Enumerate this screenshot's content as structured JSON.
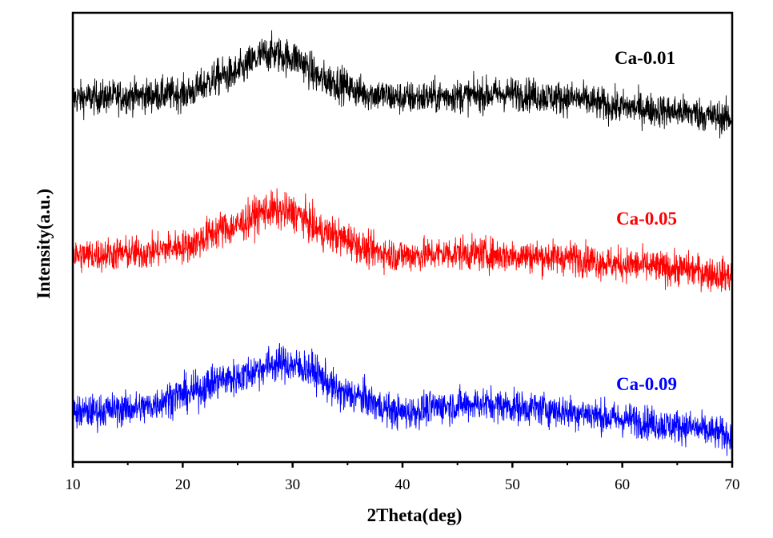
{
  "chart_data": {
    "type": "line",
    "title": "",
    "xlabel": "2Theta(deg)",
    "ylabel": "Intensity(a.u.)",
    "xlim": [
      10,
      70
    ],
    "ylim": [
      0,
      100
    ],
    "xticks": [
      "10",
      "20",
      "30",
      "40",
      "50",
      "60",
      "70"
    ],
    "xtick_values": [
      10,
      20,
      30,
      40,
      50,
      60,
      70
    ],
    "minor_xtick_values": [
      15,
      25,
      35,
      45,
      55,
      65
    ],
    "grid": false,
    "legend": "inline labels at right of each curve",
    "series": [
      {
        "name": "Ca-0.01",
        "color": "#000000",
        "noise_amplitude": 3.2,
        "baseline": [
          [
            10,
            81
          ],
          [
            16,
            81.5
          ],
          [
            20,
            82
          ],
          [
            24,
            86
          ],
          [
            28,
            91
          ],
          [
            30,
            90
          ],
          [
            33,
            85
          ],
          [
            37,
            82
          ],
          [
            40,
            81
          ],
          [
            45,
            81.5
          ],
          [
            50,
            82
          ],
          [
            55,
            81
          ],
          [
            60,
            79
          ],
          [
            65,
            78
          ],
          [
            70,
            76.5
          ]
        ]
      },
      {
        "name": "Ca-0.05",
        "color": "#ff0000",
        "noise_amplitude": 3.2,
        "baseline": [
          [
            10,
            46
          ],
          [
            16,
            46.5
          ],
          [
            20,
            48
          ],
          [
            24,
            52
          ],
          [
            28,
            56
          ],
          [
            30,
            55.5
          ],
          [
            33,
            51
          ],
          [
            35,
            49.5
          ],
          [
            37,
            47
          ],
          [
            40,
            46
          ],
          [
            45,
            46.5
          ],
          [
            50,
            46
          ],
          [
            55,
            45.5
          ],
          [
            60,
            44
          ],
          [
            65,
            43
          ],
          [
            70,
            41.5
          ]
        ]
      },
      {
        "name": "Ca-0.09",
        "color": "#0000ff",
        "noise_amplitude": 3.2,
        "baseline": [
          [
            10,
            11
          ],
          [
            16,
            12
          ],
          [
            20,
            15
          ],
          [
            24,
            18.5
          ],
          [
            29,
            22
          ],
          [
            31,
            21
          ],
          [
            35,
            15
          ],
          [
            40,
            11
          ],
          [
            44,
            12.5
          ],
          [
            47,
            13
          ],
          [
            52,
            12
          ],
          [
            56,
            11
          ],
          [
            60,
            9.5
          ],
          [
            65,
            8
          ],
          [
            70,
            6
          ]
        ]
      }
    ]
  }
}
